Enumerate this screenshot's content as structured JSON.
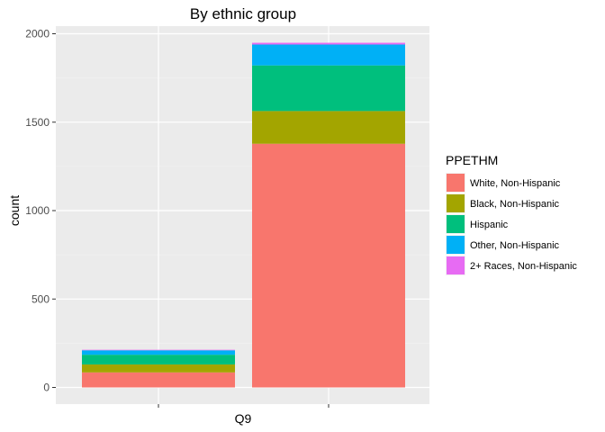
{
  "chart_data": {
    "type": "bar",
    "stacked": true,
    "title": "By ethnic group",
    "xlabel": "Q9",
    "ylabel": "count",
    "categories": [
      "",
      ""
    ],
    "ylim": [
      0,
      2000
    ],
    "yticks": [
      0,
      500,
      1000,
      1500,
      2000
    ],
    "grid": true,
    "legend_position": "right",
    "legend_title": "PPETHM",
    "series": [
      {
        "name": "White, Non-Hispanic",
        "color": "#F8766D",
        "values": [
          85,
          1378
        ]
      },
      {
        "name": "Black, Non-Hispanic",
        "color": "#A3A500",
        "values": [
          45,
          185
        ]
      },
      {
        "name": "Hispanic",
        "color": "#00BF7D",
        "values": [
          55,
          258
        ]
      },
      {
        "name": "Other, Non-Hispanic",
        "color": "#00B0F6",
        "values": [
          25,
          118
        ]
      },
      {
        "name": "2+ Races, Non-Hispanic",
        "color": "#E76BF3",
        "values": [
          3,
          10
        ]
      }
    ]
  }
}
